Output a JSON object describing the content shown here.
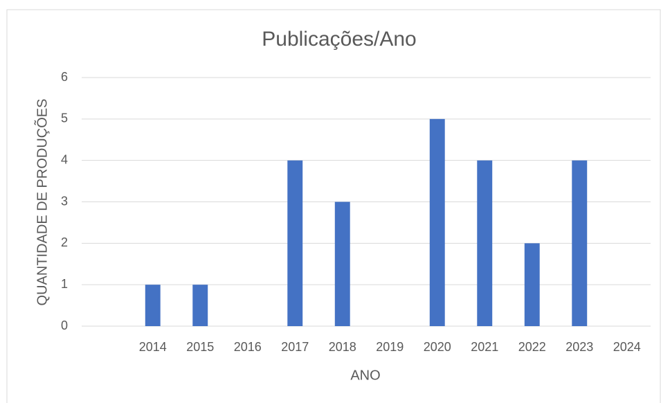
{
  "chart_data": {
    "type": "bar",
    "title": "Publicações/Ano",
    "x_label": "ANO",
    "y_label": "QUANTIDADE DE PRODUÇÕES",
    "categories": [
      null,
      "2014",
      "2015",
      "2016",
      "2017",
      "2018",
      "2019",
      "2020",
      "2021",
      "2022",
      "2023",
      "2024"
    ],
    "values": [
      0,
      1,
      1,
      0,
      4,
      3,
      0,
      5,
      4,
      2,
      4,
      0
    ],
    "color": "#4472c4",
    "ylim": [
      0,
      6
    ],
    "yticks": [
      0,
      1,
      2,
      3,
      4,
      5,
      6
    ],
    "grid": true
  }
}
